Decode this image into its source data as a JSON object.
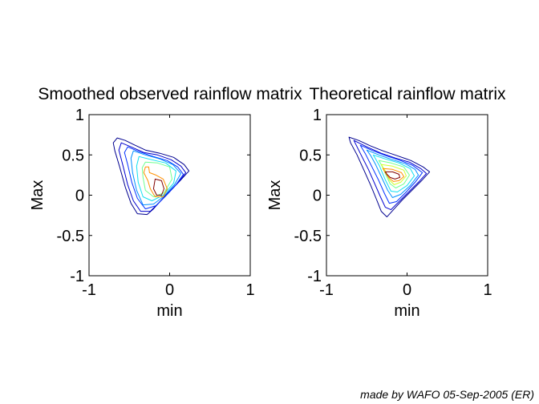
{
  "chart_data": [
    {
      "type": "contour",
      "title": "Smoothed observed rainflow matrix",
      "xlabel": "min",
      "ylabel": "Max",
      "xlim": [
        -1,
        1
      ],
      "ylim": [
        -1,
        1
      ],
      "xticks": [
        "-1",
        "0",
        "1"
      ],
      "yticks": [
        "-1",
        "-0.5",
        "0",
        "0.5",
        "1"
      ],
      "colormap": [
        "#00008f",
        "#0000cf",
        "#0030ff",
        "#0090ff",
        "#10e0f0",
        "#70ff90",
        "#d0ff30",
        "#ffa000",
        "#ff3000",
        "#800000"
      ],
      "contours": [
        {
          "level": 1,
          "color": "#00008f",
          "points": [
            [
              -0.65,
              0.71
            ],
            [
              -0.55,
              0.68
            ],
            [
              -0.45,
              0.63
            ],
            [
              -0.3,
              0.56
            ],
            [
              -0.12,
              0.52
            ],
            [
              0.05,
              0.47
            ],
            [
              0.18,
              0.38
            ],
            [
              0.24,
              0.3
            ],
            [
              0.12,
              0.17
            ],
            [
              -0.02,
              0.03
            ],
            [
              -0.12,
              -0.08
            ],
            [
              -0.2,
              -0.17
            ],
            [
              -0.28,
              -0.24
            ],
            [
              -0.4,
              -0.23
            ],
            [
              -0.48,
              -0.1
            ],
            [
              -0.55,
              0.1
            ],
            [
              -0.62,
              0.35
            ],
            [
              -0.68,
              0.55
            ],
            [
              -0.7,
              0.65
            ]
          ]
        },
        {
          "level": 2,
          "color": "#0000cf",
          "points": [
            [
              -0.6,
              0.65
            ],
            [
              -0.48,
              0.6
            ],
            [
              -0.32,
              0.53
            ],
            [
              -0.15,
              0.5
            ],
            [
              0.02,
              0.44
            ],
            [
              0.14,
              0.36
            ],
            [
              0.2,
              0.28
            ],
            [
              0.1,
              0.15
            ],
            [
              -0.04,
              0.0
            ],
            [
              -0.14,
              -0.1
            ],
            [
              -0.24,
              -0.2
            ],
            [
              -0.36,
              -0.2
            ],
            [
              -0.45,
              -0.07
            ],
            [
              -0.52,
              0.13
            ],
            [
              -0.58,
              0.37
            ],
            [
              -0.63,
              0.56
            ]
          ]
        },
        {
          "level": 3,
          "color": "#0030ff",
          "points": [
            [
              -0.52,
              0.6
            ],
            [
              -0.38,
              0.54
            ],
            [
              -0.2,
              0.48
            ],
            [
              -0.03,
              0.43
            ],
            [
              0.1,
              0.35
            ],
            [
              0.17,
              0.26
            ],
            [
              0.08,
              0.13
            ],
            [
              -0.06,
              -0.02
            ],
            [
              -0.17,
              -0.13
            ],
            [
              -0.3,
              -0.17
            ],
            [
              -0.4,
              -0.04
            ],
            [
              -0.47,
              0.16
            ],
            [
              -0.52,
              0.38
            ],
            [
              -0.56,
              0.53
            ]
          ]
        },
        {
          "level": 4,
          "color": "#0090ff",
          "points": [
            [
              -0.45,
              0.55
            ],
            [
              -0.3,
              0.5
            ],
            [
              -0.12,
              0.45
            ],
            [
              0.04,
              0.38
            ],
            [
              0.14,
              0.27
            ],
            [
              0.06,
              0.13
            ],
            [
              -0.08,
              -0.02
            ],
            [
              -0.2,
              -0.11
            ],
            [
              -0.33,
              -0.12
            ],
            [
              -0.41,
              0.06
            ],
            [
              -0.46,
              0.28
            ],
            [
              -0.48,
              0.46
            ]
          ]
        },
        {
          "level": 5,
          "color": "#10e0f0",
          "points": [
            [
              -0.38,
              0.48
            ],
            [
              -0.22,
              0.44
            ],
            [
              -0.05,
              0.4
            ],
            [
              0.08,
              0.3
            ],
            [
              0.05,
              0.15
            ],
            [
              -0.08,
              0.0
            ],
            [
              -0.22,
              -0.07
            ],
            [
              -0.33,
              -0.02
            ],
            [
              -0.39,
              0.16
            ],
            [
              -0.41,
              0.36
            ]
          ]
        },
        {
          "level": 6,
          "color": "#70ff90",
          "points": [
            [
              -0.3,
              0.41
            ],
            [
              -0.15,
              0.4
            ],
            [
              0.0,
              0.35
            ],
            [
              0.03,
              0.2
            ],
            [
              -0.07,
              0.03
            ],
            [
              -0.2,
              -0.02
            ],
            [
              -0.3,
              0.06
            ],
            [
              -0.33,
              0.22
            ],
            [
              -0.34,
              0.34
            ]
          ]
        },
        {
          "level": 7,
          "color": "#ff9000",
          "points": [
            [
              -0.3,
              0.35
            ],
            [
              -0.26,
              0.35
            ],
            [
              -0.25,
              0.28
            ],
            [
              -0.17,
              0.25
            ],
            [
              -0.08,
              0.2
            ],
            [
              -0.03,
              0.08
            ],
            [
              -0.08,
              -0.02
            ],
            [
              -0.18,
              -0.02
            ],
            [
              -0.24,
              0.08
            ],
            [
              -0.27,
              0.18
            ],
            [
              -0.32,
              0.28
            ]
          ]
        },
        {
          "level": 8,
          "color": "#800000",
          "points": [
            [
              -0.18,
              0.2
            ],
            [
              -0.1,
              0.18
            ],
            [
              -0.07,
              0.08
            ],
            [
              -0.1,
              0.0
            ],
            [
              -0.16,
              0.0
            ],
            [
              -0.2,
              0.08
            ]
          ]
        }
      ]
    },
    {
      "type": "contour",
      "title": "Theoretical rainflow matrix",
      "xlabel": "min",
      "ylabel": "Max",
      "xlim": [
        -1,
        1
      ],
      "ylim": [
        -1,
        1
      ],
      "xticks": [
        "-1",
        "0",
        "1"
      ],
      "yticks": [
        "-1",
        "-0.5",
        "0",
        "0.5",
        "1"
      ],
      "colormap": [
        "#00008f",
        "#0000cf",
        "#0030ff",
        "#0090ff",
        "#10e0f0",
        "#70ff90",
        "#d0ff30",
        "#ffa000",
        "#ff3000",
        "#800000"
      ],
      "contours": [
        {
          "level": 1,
          "color": "#00008f",
          "points": [
            [
              -0.72,
              0.72
            ],
            [
              -0.6,
              0.68
            ],
            [
              -0.45,
              0.61
            ],
            [
              -0.3,
              0.55
            ],
            [
              -0.12,
              0.49
            ],
            [
              0.05,
              0.43
            ],
            [
              0.2,
              0.35
            ],
            [
              0.28,
              0.29
            ],
            [
              0.18,
              0.18
            ],
            [
              0.05,
              0.05
            ],
            [
              -0.06,
              -0.06
            ],
            [
              -0.15,
              -0.16
            ],
            [
              -0.25,
              -0.27
            ],
            [
              -0.32,
              -0.2
            ],
            [
              -0.38,
              -0.05
            ],
            [
              -0.45,
              0.12
            ],
            [
              -0.53,
              0.3
            ],
            [
              -0.62,
              0.5
            ],
            [
              -0.7,
              0.65
            ]
          ]
        },
        {
          "level": 2,
          "color": "#0000cf",
          "points": [
            [
              -0.66,
              0.68
            ],
            [
              -0.5,
              0.6
            ],
            [
              -0.32,
              0.52
            ],
            [
              -0.14,
              0.46
            ],
            [
              0.03,
              0.41
            ],
            [
              0.17,
              0.33
            ],
            [
              0.24,
              0.27
            ],
            [
              0.14,
              0.16
            ],
            [
              0.02,
              0.04
            ],
            [
              -0.09,
              -0.07
            ],
            [
              -0.2,
              -0.18
            ],
            [
              -0.27,
              -0.15
            ],
            [
              -0.33,
              -0.02
            ],
            [
              -0.4,
              0.14
            ],
            [
              -0.48,
              0.32
            ],
            [
              -0.57,
              0.5
            ]
          ]
        },
        {
          "level": 3,
          "color": "#0030ff",
          "points": [
            [
              -0.58,
              0.62
            ],
            [
              -0.42,
              0.55
            ],
            [
              -0.26,
              0.49
            ],
            [
              -0.08,
              0.43
            ],
            [
              0.07,
              0.37
            ],
            [
              0.19,
              0.28
            ],
            [
              0.1,
              0.16
            ],
            [
              -0.02,
              0.03
            ],
            [
              -0.13,
              -0.08
            ],
            [
              -0.22,
              -0.1
            ],
            [
              -0.28,
              0.02
            ],
            [
              -0.35,
              0.18
            ],
            [
              -0.44,
              0.36
            ],
            [
              -0.52,
              0.52
            ]
          ]
        },
        {
          "level": 4,
          "color": "#0090ff",
          "points": [
            [
              -0.5,
              0.56
            ],
            [
              -0.35,
              0.5
            ],
            [
              -0.18,
              0.44
            ],
            [
              -0.02,
              0.39
            ],
            [
              0.1,
              0.32
            ],
            [
              0.14,
              0.25
            ],
            [
              0.04,
              0.12
            ],
            [
              -0.08,
              0.01
            ],
            [
              -0.18,
              -0.03
            ],
            [
              -0.24,
              0.06
            ],
            [
              -0.31,
              0.21
            ],
            [
              -0.39,
              0.38
            ],
            [
              -0.45,
              0.49
            ]
          ]
        },
        {
          "level": 5,
          "color": "#10e0f0",
          "points": [
            [
              -0.42,
              0.5
            ],
            [
              -0.27,
              0.45
            ],
            [
              -0.1,
              0.4
            ],
            [
              0.04,
              0.33
            ],
            [
              0.09,
              0.24
            ],
            [
              0.0,
              0.12
            ],
            [
              -0.12,
              0.04
            ],
            [
              -0.2,
              0.05
            ],
            [
              -0.27,
              0.19
            ],
            [
              -0.34,
              0.36
            ],
            [
              -0.39,
              0.45
            ]
          ]
        },
        {
          "level": 6,
          "color": "#70ff90",
          "points": [
            [
              -0.35,
              0.43
            ],
            [
              -0.2,
              0.4
            ],
            [
              -0.04,
              0.35
            ],
            [
              0.03,
              0.25
            ],
            [
              -0.04,
              0.14
            ],
            [
              -0.14,
              0.09
            ],
            [
              -0.21,
              0.14
            ],
            [
              -0.27,
              0.27
            ],
            [
              -0.32,
              0.38
            ]
          ]
        },
        {
          "level": 7,
          "color": "#d0ff30",
          "points": [
            [
              -0.32,
              0.38
            ],
            [
              -0.18,
              0.36
            ],
            [
              -0.04,
              0.31
            ],
            [
              -0.01,
              0.24
            ],
            [
              -0.08,
              0.16
            ],
            [
              -0.16,
              0.13
            ],
            [
              -0.22,
              0.19
            ],
            [
              -0.27,
              0.3
            ]
          ]
        },
        {
          "level": 8,
          "color": "#ff9000",
          "points": [
            [
              -0.3,
              0.33
            ],
            [
              -0.18,
              0.32
            ],
            [
              -0.07,
              0.28
            ],
            [
              -0.04,
              0.23
            ],
            [
              -0.1,
              0.18
            ],
            [
              -0.17,
              0.17
            ],
            [
              -0.23,
              0.22
            ],
            [
              -0.27,
              0.28
            ]
          ]
        },
        {
          "level": 9,
          "color": "#800000",
          "points": [
            [
              -0.27,
              0.29
            ],
            [
              -0.18,
              0.29
            ],
            [
              -0.1,
              0.26
            ],
            [
              -0.09,
              0.22
            ],
            [
              -0.15,
              0.2
            ],
            [
              -0.21,
              0.22
            ],
            [
              -0.25,
              0.26
            ]
          ]
        }
      ]
    }
  ],
  "credit": "made by WAFO 05-Sep-2005 (ER)"
}
